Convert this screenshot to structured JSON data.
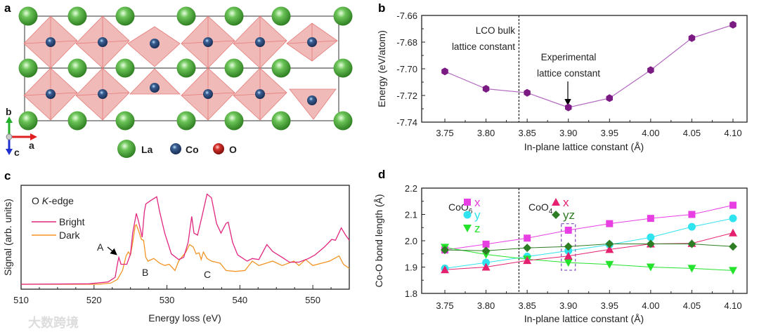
{
  "panel_labels": {
    "a": "a",
    "b": "b",
    "c": "c",
    "d": "d"
  },
  "structure": {
    "legend": [
      {
        "label": "La",
        "color": "#5cb84a"
      },
      {
        "label": "Co",
        "color": "#2c4f86"
      },
      {
        "label": "O",
        "color": "#c8241f"
      }
    ],
    "axes": {
      "b": "b",
      "a": "a",
      "c": "c"
    },
    "polyhedra_color": "#e9a3a0"
  },
  "watermark": "大数跨境",
  "chart_data": [
    {
      "id": "b",
      "type": "line",
      "xlabel": "In-plane lattice constant (Å)",
      "ylabel": "Energy  (eV/atom)",
      "x": [
        3.75,
        3.8,
        3.85,
        3.9,
        3.95,
        4.0,
        4.05,
        4.1
      ],
      "xticks": [
        "3.75",
        "3.80",
        "3.85",
        "3.90",
        "3.95",
        "4.00",
        "4.05",
        "4.10"
      ],
      "yticks": [
        "-7.66",
        "-7.68",
        "-7.70",
        "-7.72",
        "-7.74"
      ],
      "xlim": [
        3.75,
        4.1
      ],
      "ylim": [
        -7.74,
        -7.66
      ],
      "series": [
        {
          "name": "Energy",
          "color": "#7b1a82",
          "values": [
            -7.702,
            -7.715,
            -7.718,
            -7.729,
            -7.722,
            -7.701,
            -7.677,
            -7.667
          ]
        }
      ],
      "vline": 3.84,
      "annotations": {
        "bulk_line1": "LCO bulk",
        "bulk_line2": "lattice constant",
        "exp_line1": "Experimental",
        "exp_line2": "lattice constant"
      }
    },
    {
      "id": "c",
      "type": "line",
      "xlabel": "Energy loss (eV)",
      "ylabel": "Signal (arb. units)",
      "xlim": [
        510,
        555
      ],
      "ylim": [
        0,
        1
      ],
      "xticks": [
        "510",
        "520",
        "530",
        "540",
        "550"
      ],
      "legend_title": "O K-edge",
      "legend_title_prefix": "O ",
      "legend_title_italic": "K",
      "legend_title_suffix": "-edge",
      "annotations": {
        "A": "A",
        "B": "B",
        "C": "C"
      },
      "series": [
        {
          "name": "Bright",
          "color": "#e0267f",
          "x": [
            510,
            519.36,
            521.94,
            522.9,
            523.23,
            523.4,
            523.7,
            524.5,
            525.0,
            525.3,
            525.8,
            526.1,
            526.6,
            526.9,
            527.1,
            527.7,
            528.6,
            529.0,
            529.7,
            530.6,
            531.6,
            532.3,
            532.9,
            533.4,
            533.7,
            534.2,
            534.8,
            535.5,
            536.1,
            536.8,
            537.4,
            538.1,
            538.4,
            539.0,
            539.7,
            541.0,
            541.7,
            542.6,
            543.7,
            544.5,
            545.8,
            546.8,
            548.1,
            549.4,
            550.3,
            551.6,
            552.6,
            553.1,
            553.9,
            554.5,
            555
          ],
          "y": [
            0.047,
            0.052,
            0.07,
            0.115,
            0.25,
            0.306,
            0.24,
            0.24,
            0.34,
            0.54,
            0.73,
            0.655,
            0.5,
            0.745,
            0.82,
            0.85,
            0.89,
            0.745,
            0.54,
            0.34,
            0.285,
            0.306,
            0.45,
            0.7,
            0.54,
            0.52,
            0.7,
            0.915,
            0.88,
            0.633,
            0.54,
            0.633,
            0.645,
            0.45,
            0.33,
            0.27,
            0.295,
            0.285,
            0.43,
            0.363,
            0.306,
            0.26,
            0.26,
            0.295,
            0.33,
            0.407,
            0.48,
            0.47,
            0.59,
            0.52,
            0.47
          ]
        },
        {
          "name": "Dark",
          "color": "#f39424",
          "x": [
            510,
            520.6,
            522.3,
            523.2,
            523.9,
            524.4,
            524.7,
            525.0,
            525.3,
            525.65,
            525.8,
            526.1,
            526.5,
            526.8,
            527.1,
            527.4,
            528.2,
            529.0,
            529.7,
            530.3,
            531.1,
            531.6,
            532.6,
            533.1,
            533.6,
            534.0,
            534.4,
            534.7,
            535.0,
            535.5,
            536.1,
            537.3,
            538.1,
            539.4,
            540.7,
            541.7,
            542.6,
            544.5,
            545.8,
            547.4,
            548.1,
            549.0,
            550.0,
            552.3,
            553.6,
            554.2,
            555
          ],
          "y": [
            0.047,
            0.047,
            0.059,
            0.093,
            0.18,
            0.32,
            0.358,
            0.33,
            0.45,
            0.61,
            0.62,
            0.565,
            0.48,
            0.47,
            0.306,
            0.27,
            0.295,
            0.25,
            0.228,
            0.24,
            0.18,
            0.27,
            0.358,
            0.43,
            0.407,
            0.34,
            0.351,
            0.285,
            0.358,
            0.295,
            0.27,
            0.25,
            0.18,
            0.171,
            0.18,
            0.27,
            0.228,
            0.27,
            0.228,
            0.27,
            0.228,
            0.285,
            0.228,
            0.27,
            0.32,
            0.24,
            0.2
          ]
        }
      ]
    },
    {
      "id": "d",
      "type": "line",
      "xlabel": "In-plane lattice constant (Å)",
      "ylabel": "Co-O bond length  (Å)",
      "x": [
        3.75,
        3.8,
        3.85,
        3.9,
        3.95,
        4.0,
        4.05,
        4.1
      ],
      "xticks": [
        "3.75",
        "3.80",
        "3.85",
        "3.90",
        "3.95",
        "4.00",
        "4.05",
        "4.10"
      ],
      "yticks": [
        "2.2",
        "2.1",
        "2.0",
        "1.9",
        "1.8"
      ],
      "xlim": [
        3.75,
        4.1
      ],
      "ylim": [
        1.8,
        2.2
      ],
      "vline": 3.84,
      "highlight_x": 3.9,
      "groups": {
        "CoO6": {
          "base": "CoO",
          "sub": "6"
        },
        "CoO4": {
          "base": "CoO",
          "sub": "4"
        }
      },
      "series": [
        {
          "name": "x",
          "group": "CoO6",
          "marker": "square",
          "color": "#e83fe3",
          "values": [
            1.965,
            1.987,
            2.01,
            2.04,
            2.065,
            2.085,
            2.1,
            2.135
          ]
        },
        {
          "name": "y",
          "group": "CoO6",
          "marker": "circle",
          "color": "#2fe3ef",
          "values": [
            1.895,
            1.917,
            1.94,
            1.962,
            1.985,
            2.013,
            2.053,
            2.085
          ]
        },
        {
          "name": "z",
          "group": "CoO6",
          "marker": "triangle-down",
          "color": "#25e22c",
          "values": [
            1.975,
            1.948,
            1.93,
            1.917,
            1.91,
            1.9,
            1.895,
            1.887
          ]
        },
        {
          "name": "x",
          "group": "CoO4",
          "marker": "triangle-up",
          "color": "#e5206f",
          "values": [
            1.89,
            1.9,
            1.925,
            1.942,
            1.967,
            1.988,
            1.99,
            2.03
          ]
        },
        {
          "name": "yz",
          "group": "CoO4",
          "marker": "diamond",
          "color": "#2e7d24",
          "values": [
            1.965,
            1.962,
            1.973,
            1.978,
            1.988,
            1.988,
            1.988,
            1.978
          ]
        }
      ]
    }
  ]
}
